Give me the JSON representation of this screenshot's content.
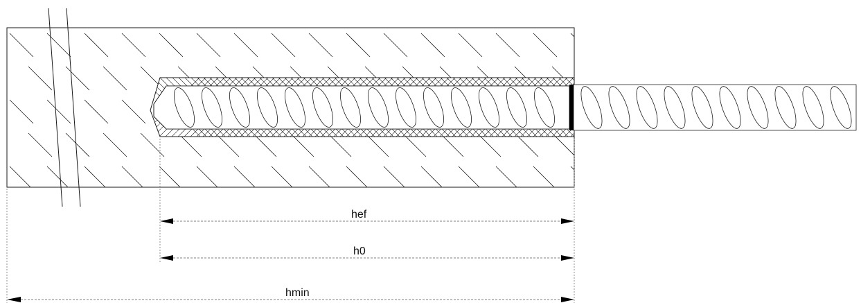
{
  "dimensions": {
    "hef": "hef",
    "h0": "h0",
    "hmin": "hmin"
  },
  "colors": {
    "line": "#1a1a1a",
    "dash": "#555555",
    "background": "#ffffff"
  }
}
